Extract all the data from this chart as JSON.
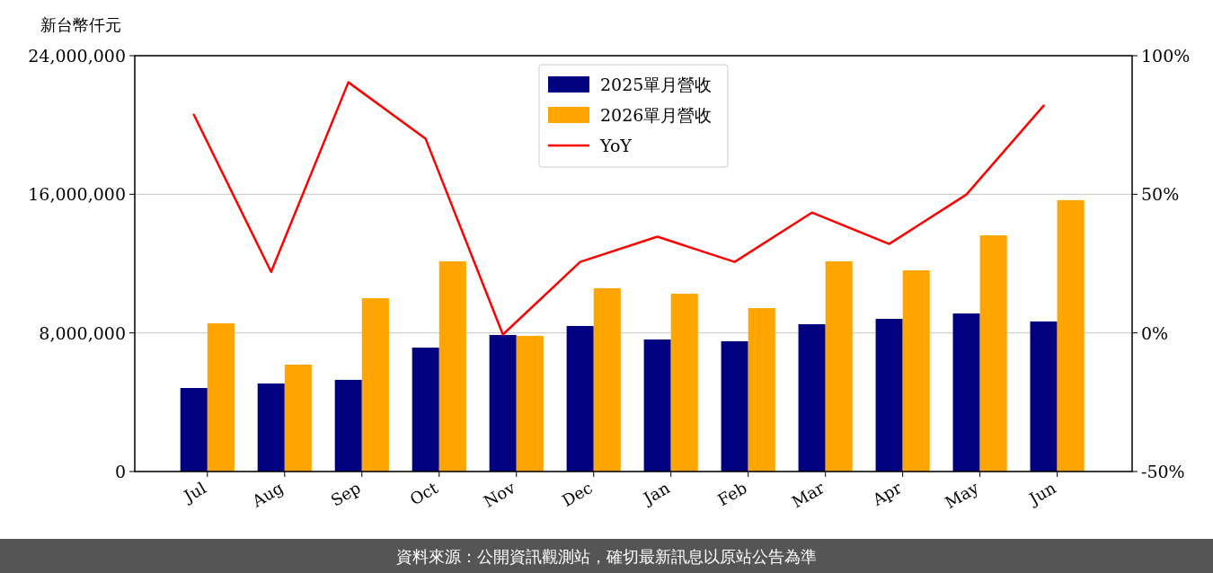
{
  "chart_data": {
    "type": "bar",
    "ylabel": "新台幣仟元",
    "categories": [
      "Jul",
      "Aug",
      "Sep",
      "Oct",
      "Nov",
      "Dec",
      "Jan",
      "Feb",
      "Mar",
      "Apr",
      "May",
      "Jun"
    ],
    "series": [
      {
        "name": "2025單月營收",
        "color": "#000080",
        "values": [
          4820000,
          5080000,
          5290000,
          7150000,
          7880000,
          8400000,
          7620000,
          7520000,
          8500000,
          8810000,
          9120000,
          8660000
        ]
      },
      {
        "name": "2026單月營收",
        "color": "#ffa500",
        "values": [
          8550000,
          6170000,
          10000000,
          12130000,
          7830000,
          10580000,
          10260000,
          9430000,
          12130000,
          11610000,
          13630000,
          15660000
        ]
      },
      {
        "name": "YoY",
        "color": "#ff0000",
        "type": "line",
        "axis": "y2",
        "values": [
          78.7,
          22.0,
          90.4,
          70.0,
          -0.6,
          25.6,
          34.7,
          25.6,
          43.4,
          32.1,
          49.9,
          82.0
        ]
      }
    ],
    "ylim": [
      0,
      24000000
    ],
    "yticks": [
      {
        "value": 0,
        "label": "0"
      },
      {
        "value": 8000000,
        "label": "8,000,000"
      },
      {
        "value": 16000000,
        "label": "16,000,000"
      },
      {
        "value": 24000000,
        "label": "24,000,000"
      }
    ],
    "y2lim": [
      -50,
      100
    ],
    "y2ticks": [
      {
        "value": -50,
        "label": "-50%"
      },
      {
        "value": 0,
        "label": "0%"
      },
      {
        "value": 50,
        "label": "50%"
      },
      {
        "value": 100,
        "label": "100%"
      }
    ],
    "grid": "y",
    "legend": "top",
    "annotations": [
      "資料來源：公開資訊觀測站，確切最新訊息以原站公告為準"
    ]
  }
}
